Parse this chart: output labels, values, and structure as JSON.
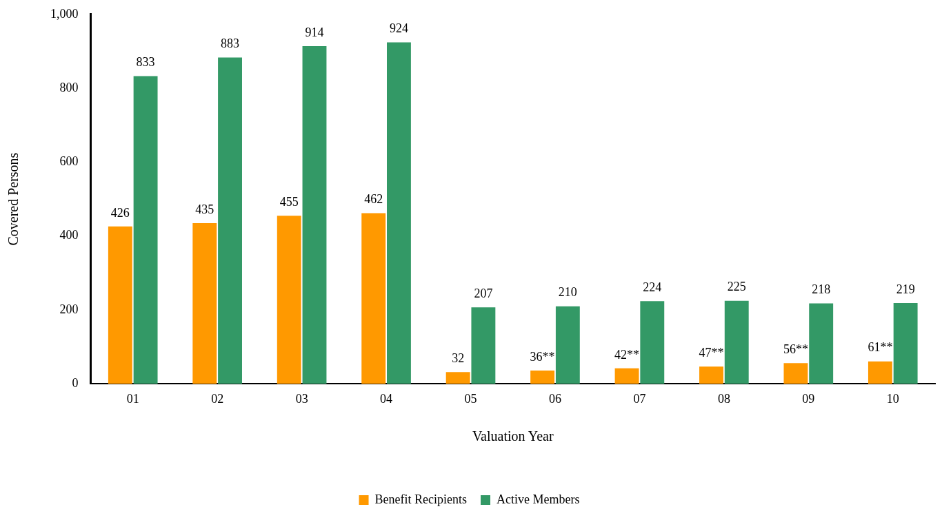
{
  "chart_data": {
    "type": "bar",
    "xlabel": "Valuation Year",
    "ylabel": "Covered Persons",
    "categories": [
      "01",
      "02",
      "03",
      "04",
      "05",
      "06",
      "07",
      "08",
      "09",
      "10"
    ],
    "series": [
      {
        "name": "Benefit Recipients",
        "color": "#ff9900",
        "values": [
          426,
          435,
          455,
          462,
          32,
          36,
          42,
          47,
          56,
          61
        ],
        "value_labels": [
          "426",
          "435",
          "455",
          "462",
          "32",
          "36**",
          "42**",
          "47**",
          "56**",
          "61**"
        ]
      },
      {
        "name": "Active Members",
        "color": "#339966",
        "values": [
          833,
          883,
          914,
          924,
          207,
          210,
          224,
          225,
          218,
          219
        ],
        "value_labels": [
          "833",
          "883",
          "914",
          "924",
          "207",
          "210",
          "224",
          "225",
          "218",
          "219"
        ]
      }
    ],
    "ylim": [
      0,
      1000
    ],
    "yticks": [
      0,
      200,
      400,
      600,
      {
        "value": 800,
        "label": "800"
      },
      {
        "value": 1000,
        "label": "1,000"
      }
    ],
    "grid": false,
    "legend": "bottom"
  }
}
